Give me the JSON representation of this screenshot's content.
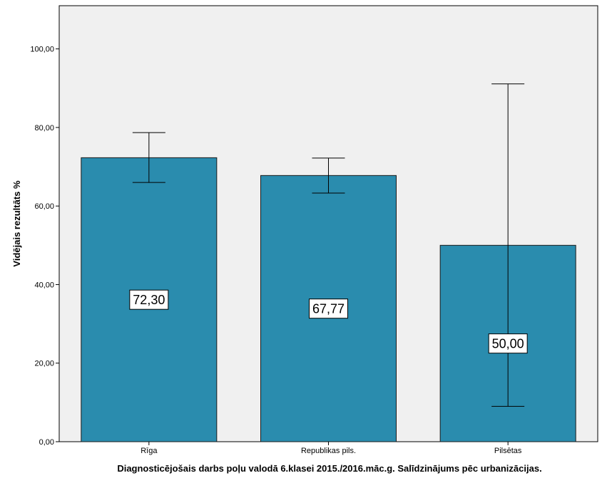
{
  "chart_data": {
    "type": "bar",
    "categories": [
      "Rīga",
      "Republikas pils.",
      "Pilsētas"
    ],
    "values": [
      72.3,
      67.77,
      50.0
    ],
    "value_labels": [
      "72,30",
      "67,77",
      "50,00"
    ],
    "error_bars": {
      "lower": [
        66.0,
        63.3,
        9.0
      ],
      "upper": [
        78.7,
        72.2,
        91.1
      ]
    },
    "title": "",
    "xlabel": "Diagnosticējošais darbs poļu valodā 6.klasei 2015./2016.māc.g. Salīdzinājums pēc urbanizācijas.",
    "ylabel": "Vidējais rezultāts %",
    "ylim": [
      0,
      111
    ],
    "yticks": [
      0,
      20,
      40,
      60,
      80,
      100
    ],
    "ytick_labels": [
      "0,00",
      "20,00",
      "40,00",
      "60,00",
      "80,00",
      "100,00"
    ],
    "grid": false,
    "legend": "none",
    "colors": {
      "bar_fill": "#2a8cae",
      "bar_stroke": "#1a1a1a",
      "plot_background": "#f0f0f0",
      "error_bar": "#000000"
    }
  }
}
